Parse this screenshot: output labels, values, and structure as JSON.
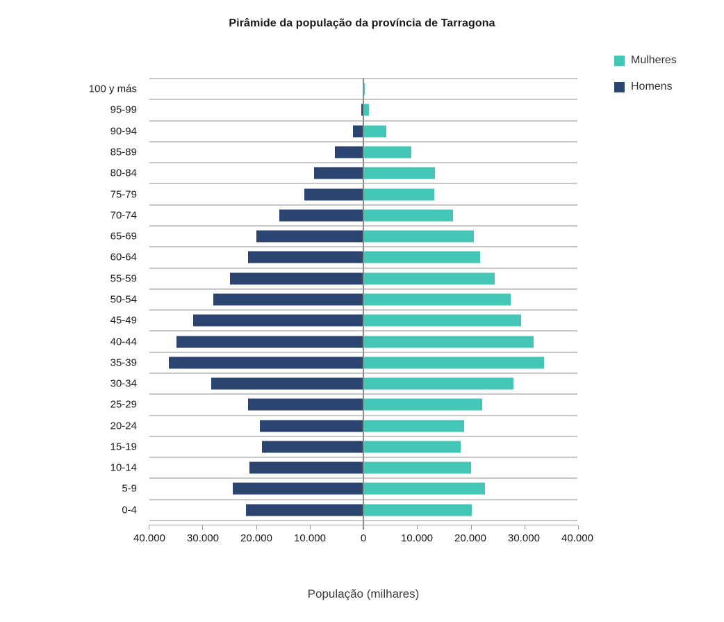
{
  "title": "Pirâmide da população da província de Tarragona",
  "xlabel": "População (milhares)",
  "legend": [
    {
      "label": "Mulheres",
      "color": "#44C6B6"
    },
    {
      "label": "Homens",
      "color": "#2B4470"
    }
  ],
  "chart_data": {
    "type": "bar",
    "subtype": "population-pyramid",
    "orientation": "horizontal",
    "title": "Pirâmide da população da província de Tarragona",
    "xlabel": "População (milhares)",
    "categories": [
      "100 y más",
      "95-99",
      "90-94",
      "85-89",
      "80-84",
      "75-79",
      "70-74",
      "65-69",
      "60-64",
      "55-59",
      "50-54",
      "45-49",
      "40-44",
      "35-39",
      "30-34",
      "25-29",
      "20-24",
      "15-19",
      "10-14",
      "5-9",
      "0-4"
    ],
    "series": [
      {
        "name": "Homens",
        "side": "left",
        "color": "#2B4470",
        "values": [
          100,
          400,
          1900,
          5300,
          9200,
          11000,
          15700,
          20000,
          21500,
          24900,
          28100,
          31800,
          34900,
          36400,
          28500,
          21600,
          19300,
          18900,
          21300,
          24400,
          21900
        ]
      },
      {
        "name": "Mulheres",
        "side": "right",
        "color": "#44C6B6",
        "values": [
          300,
          1000,
          4300,
          8900,
          13400,
          13300,
          16800,
          20700,
          21800,
          24600,
          27500,
          29500,
          31800,
          33800,
          28000,
          22200,
          18800,
          18200,
          20100,
          22700,
          20200
        ]
      }
    ],
    "x_ticks": [
      "40.000",
      "30.000",
      "20.000",
      "10.000",
      "0",
      "10.000",
      "20.000",
      "30.000",
      "40.000"
    ],
    "xlim": [
      -40000,
      40000
    ],
    "grid": "horizontal",
    "legend_position": "top-right"
  }
}
